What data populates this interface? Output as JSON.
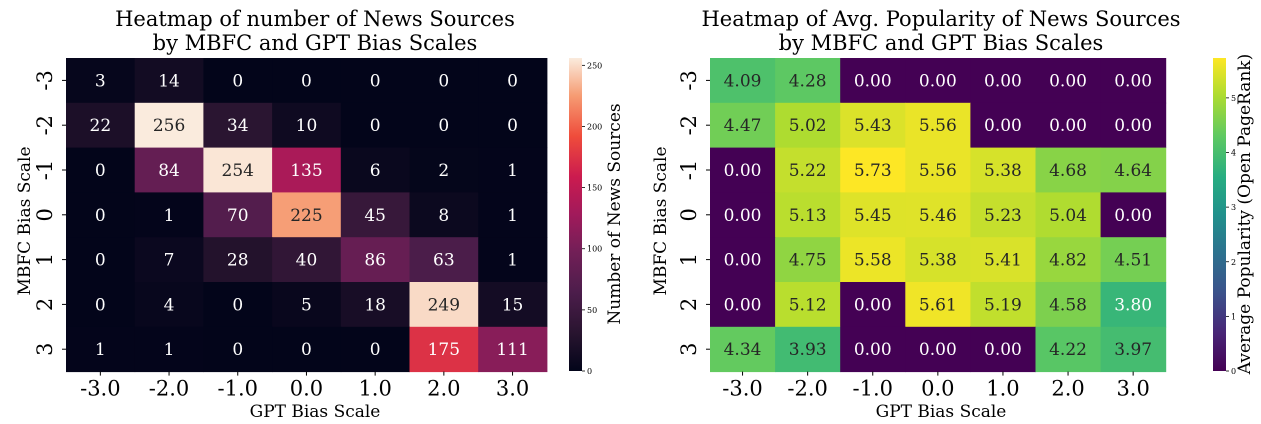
{
  "chart_data": [
    {
      "type": "heatmap",
      "title": "Heatmap of number of News Sources\nby MBFC and GPT Bias Scales",
      "xlabel": "GPT Bias Scale",
      "ylabel": "MBFC Bias Scale",
      "x_ticks": [
        "-3.0",
        "-2.0",
        "-1.0",
        "0.0",
        "1.0",
        "2.0",
        "3.0"
      ],
      "y_ticks": [
        "-3",
        "-2",
        "-1",
        "0",
        "1",
        "2",
        "3"
      ],
      "values": [
        [
          3,
          14,
          0,
          0,
          0,
          0,
          0
        ],
        [
          22,
          256,
          34,
          10,
          0,
          0,
          0
        ],
        [
          0,
          84,
          254,
          135,
          6,
          2,
          1
        ],
        [
          0,
          1,
          70,
          225,
          45,
          8,
          1
        ],
        [
          0,
          7,
          28,
          40,
          86,
          63,
          1
        ],
        [
          0,
          4,
          0,
          5,
          18,
          249,
          15
        ],
        [
          1,
          1,
          0,
          0,
          0,
          175,
          111
        ]
      ],
      "value_labels": [
        [
          "3",
          "14",
          "0",
          "0",
          "0",
          "0",
          "0"
        ],
        [
          "22",
          "256",
          "34",
          "10",
          "0",
          "0",
          "0"
        ],
        [
          "0",
          "84",
          "254",
          "135",
          "6",
          "2",
          "1"
        ],
        [
          "0",
          "1",
          "70",
          "225",
          "45",
          "8",
          "1"
        ],
        [
          "0",
          "7",
          "28",
          "40",
          "86",
          "63",
          "1"
        ],
        [
          "0",
          "4",
          "0",
          "5",
          "18",
          "249",
          "15"
        ],
        [
          "1",
          "1",
          "0",
          "0",
          "0",
          "175",
          "111"
        ]
      ],
      "colormap": "rocket",
      "vmin": 0,
      "vmax": 256,
      "colorbar": {
        "label": "Number of News Sources",
        "ticks": [
          0,
          50,
          100,
          150,
          200,
          250
        ],
        "tick_labels": [
          "0",
          "50",
          "100",
          "150",
          "200",
          "250"
        ]
      }
    },
    {
      "type": "heatmap",
      "title": "Heatmap of Avg. Popularity of News Sources\nby MBFC and GPT Bias Scales",
      "xlabel": "GPT Bias Scale",
      "ylabel": "MBFC Bias Scale",
      "x_ticks": [
        "-3.0",
        "-2.0",
        "-1.0",
        "0.0",
        "1.0",
        "2.0",
        "3.0"
      ],
      "y_ticks": [
        "-3",
        "-2",
        "-1",
        "0",
        "1",
        "2",
        "3"
      ],
      "values": [
        [
          4.09,
          4.28,
          0.0,
          0.0,
          0.0,
          0.0,
          0.0
        ],
        [
          4.47,
          5.02,
          5.43,
          5.56,
          0.0,
          0.0,
          0.0
        ],
        [
          0.0,
          5.22,
          5.73,
          5.56,
          5.38,
          4.68,
          4.64
        ],
        [
          0.0,
          5.13,
          5.45,
          5.46,
          5.23,
          5.04,
          0.0
        ],
        [
          0.0,
          4.75,
          5.58,
          5.38,
          5.41,
          4.82,
          4.51
        ],
        [
          0.0,
          5.12,
          0.0,
          5.61,
          5.19,
          4.58,
          3.8
        ],
        [
          4.34,
          3.93,
          0.0,
          0.0,
          0.0,
          4.22,
          3.97
        ]
      ],
      "value_labels": [
        [
          "4.09",
          "4.28",
          "0.00",
          "0.00",
          "0.00",
          "0.00",
          "0.00"
        ],
        [
          "4.47",
          "5.02",
          "5.43",
          "5.56",
          "0.00",
          "0.00",
          "0.00"
        ],
        [
          "0.00",
          "5.22",
          "5.73",
          "5.56",
          "5.38",
          "4.68",
          "4.64"
        ],
        [
          "0.00",
          "5.13",
          "5.45",
          "5.46",
          "5.23",
          "5.04",
          "0.00"
        ],
        [
          "0.00",
          "4.75",
          "5.58",
          "5.38",
          "5.41",
          "4.82",
          "4.51"
        ],
        [
          "0.00",
          "5.12",
          "0.00",
          "5.61",
          "5.19",
          "4.58",
          "3.80"
        ],
        [
          "4.34",
          "3.93",
          "0.00",
          "0.00",
          "0.00",
          "4.22",
          "3.97"
        ]
      ],
      "colormap": "viridis",
      "vmin": 0,
      "vmax": 5.73,
      "colorbar": {
        "label": "Average Popularity (Open PageRank)",
        "ticks": [
          0,
          1,
          2,
          3,
          4,
          5
        ],
        "tick_labels": [
          "0",
          "1",
          "2",
          "3",
          "4",
          "5"
        ]
      }
    }
  ]
}
